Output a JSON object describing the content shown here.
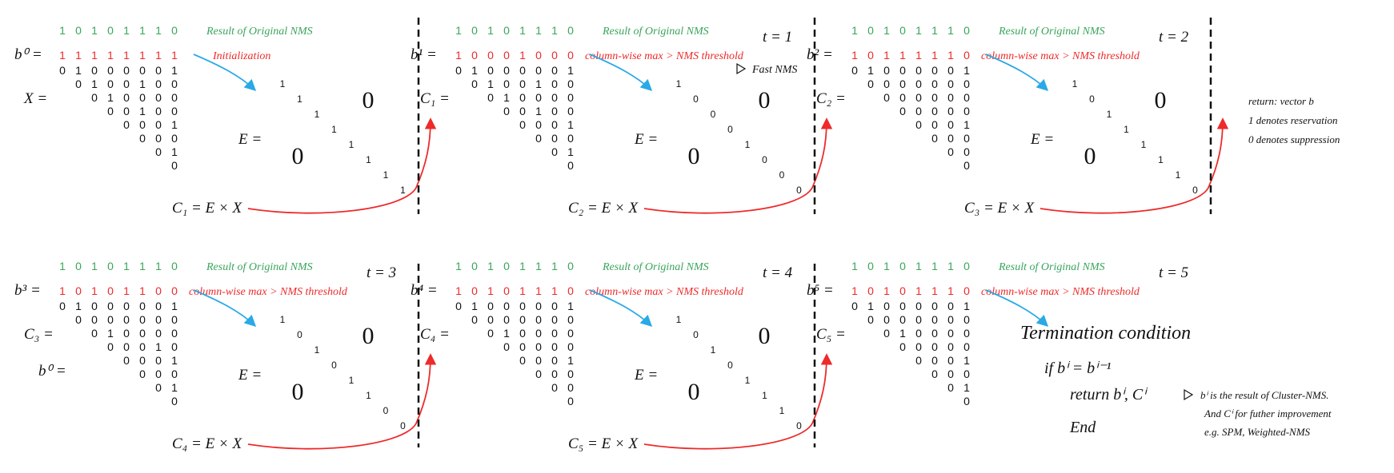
{
  "colors": {
    "green": "#3aa55c",
    "red": "#ee2a2a",
    "blue": "#2aa9e6",
    "black": "#111111"
  },
  "orig_digits": [
    "1",
    "0",
    "1",
    "0",
    "1",
    "1",
    "1",
    "0"
  ],
  "orig_label": "Result of Original NMS",
  "init_label": "Initialization",
  "cw_label": "column-wise max > NMS threshold",
  "fast_nms": "Fast NMS",
  "e_eq": "E =",
  "zero_big": "0",
  "panels": [
    {
      "t": "",
      "b": "b⁰ =",
      "b_digits": [
        "1",
        "1",
        "1",
        "1",
        "1",
        "1",
        "1",
        "1"
      ],
      "cond_key": "init",
      "c_left": "X =",
      "c_below": "",
      "c_formula": "C₁ = E × X",
      "x_rows": [
        [
          "0",
          "1",
          "0",
          "0",
          "0",
          "0",
          "0",
          "1"
        ],
        [
          "0",
          "1",
          "0",
          "0",
          "1",
          "0",
          "0"
        ],
        [
          "0",
          "1",
          "0",
          "0",
          "0",
          "0"
        ],
        [
          "0",
          "0",
          "1",
          "0",
          "0"
        ],
        [
          "0",
          "0",
          "0",
          "1"
        ],
        [
          "0",
          "0",
          "0"
        ],
        [
          "0",
          "1"
        ],
        [
          "0"
        ]
      ],
      "e_diag": [
        "1",
        "1",
        "1",
        "1",
        "1",
        "1",
        "1",
        "1"
      ]
    },
    {
      "t": "t = 1",
      "b": "b¹ =",
      "b_digits": [
        "1",
        "0",
        "0",
        "0",
        "1",
        "0",
        "0",
        "0"
      ],
      "cond_key": "cw",
      "c_left": "C₁ =",
      "c_below": "",
      "c_formula": "C₂ = E × X",
      "x_rows": [
        [
          "0",
          "1",
          "0",
          "0",
          "0",
          "0",
          "0",
          "1"
        ],
        [
          "0",
          "1",
          "0",
          "0",
          "1",
          "0",
          "0"
        ],
        [
          "0",
          "1",
          "0",
          "0",
          "0",
          "0"
        ],
        [
          "0",
          "0",
          "1",
          "0",
          "0"
        ],
        [
          "0",
          "0",
          "0",
          "1"
        ],
        [
          "0",
          "0",
          "0"
        ],
        [
          "0",
          "1"
        ],
        [
          "0"
        ]
      ],
      "e_diag": [
        "1",
        "0",
        "0",
        "0",
        "1",
        "0",
        "0",
        "0"
      ]
    },
    {
      "t": "t = 2",
      "b": "b² =",
      "b_digits": [
        "1",
        "0",
        "1",
        "1",
        "1",
        "1",
        "1",
        "0"
      ],
      "cond_key": "cw",
      "c_left": "C₂ =",
      "c_below": "",
      "c_formula": "C₃ = E × X",
      "x_rows": [
        [
          "0",
          "1",
          "0",
          "0",
          "0",
          "0",
          "0",
          "1"
        ],
        [
          "0",
          "0",
          "0",
          "0",
          "0",
          "0",
          "0"
        ],
        [
          "0",
          "0",
          "0",
          "0",
          "0",
          "0"
        ],
        [
          "0",
          "0",
          "0",
          "0",
          "0"
        ],
        [
          "0",
          "0",
          "0",
          "1"
        ],
        [
          "0",
          "0",
          "0"
        ],
        [
          "0",
          "0"
        ],
        [
          "0"
        ]
      ],
      "e_diag": [
        "1",
        "0",
        "1",
        "1",
        "1",
        "1",
        "1",
        "0"
      ]
    },
    {
      "t": "t = 3",
      "b": "b³ =",
      "b_digits": [
        "1",
        "0",
        "1",
        "0",
        "1",
        "1",
        "0",
        "0"
      ],
      "cond_key": "cw",
      "c_left": "C₃ =",
      "c_below": "b⁰ =",
      "c_formula": "C₄ = E × X",
      "x_rows": [
        [
          "0",
          "1",
          "0",
          "0",
          "0",
          "0",
          "0",
          "1"
        ],
        [
          "0",
          "0",
          "0",
          "0",
          "0",
          "0",
          "0"
        ],
        [
          "0",
          "1",
          "0",
          "0",
          "0",
          "0"
        ],
        [
          "0",
          "0",
          "0",
          "1",
          "0"
        ],
        [
          "0",
          "0",
          "0",
          "1"
        ],
        [
          "0",
          "0",
          "0"
        ],
        [
          "0",
          "1"
        ],
        [
          "0"
        ]
      ],
      "e_diag": [
        "1",
        "0",
        "1",
        "0",
        "1",
        "1",
        "0",
        "0"
      ]
    },
    {
      "t": "t = 4",
      "b": "b⁴ =",
      "b_digits": [
        "1",
        "0",
        "1",
        "0",
        "1",
        "1",
        "1",
        "0"
      ],
      "cond_key": "cw",
      "c_left": "C₄ =",
      "c_below": "",
      "c_formula": "C₅ = E × X",
      "x_rows": [
        [
          "0",
          "1",
          "0",
          "0",
          "0",
          "0",
          "0",
          "1"
        ],
        [
          "0",
          "0",
          "0",
          "0",
          "0",
          "0",
          "0"
        ],
        [
          "0",
          "1",
          "0",
          "0",
          "0",
          "0"
        ],
        [
          "0",
          "0",
          "0",
          "0",
          "0"
        ],
        [
          "0",
          "0",
          "0",
          "1"
        ],
        [
          "0",
          "0",
          "0"
        ],
        [
          "0",
          "0"
        ],
        [
          "0"
        ]
      ],
      "e_diag": [
        "1",
        "0",
        "1",
        "0",
        "1",
        "1",
        "1",
        "0"
      ]
    },
    {
      "t": "t = 5",
      "b": "b⁵ =",
      "b_digits": [
        "1",
        "0",
        "1",
        "0",
        "1",
        "1",
        "1",
        "0"
      ],
      "cond_key": "cw",
      "c_left": "C₅ =",
      "c_below": "",
      "c_formula": "",
      "x_rows": [
        [
          "0",
          "1",
          "0",
          "0",
          "0",
          "0",
          "0",
          "1"
        ],
        [
          "0",
          "0",
          "0",
          "0",
          "0",
          "0",
          "0"
        ],
        [
          "0",
          "1",
          "0",
          "0",
          "0",
          "0"
        ],
        [
          "0",
          "0",
          "0",
          "0",
          "0"
        ],
        [
          "0",
          "0",
          "0",
          "1"
        ],
        [
          "0",
          "0",
          "0"
        ],
        [
          "0",
          "1"
        ],
        [
          "0"
        ]
      ],
      "e_diag": []
    }
  ],
  "side_note": [
    "return: vector b",
    "1 denotes reservation",
    "0 denotes suppression"
  ],
  "termination": {
    "title": "Termination condition",
    "if_line": "if  bⁱ = bⁱ⁻¹",
    "return_line": "return  bⁱ, Cⁱ",
    "end": "End",
    "notes": [
      "bⁱ is the result of Cluster-NMS.",
      "And Cⁱ for futher improvement",
      "e.g. SPM, Weighted-NMS"
    ]
  }
}
